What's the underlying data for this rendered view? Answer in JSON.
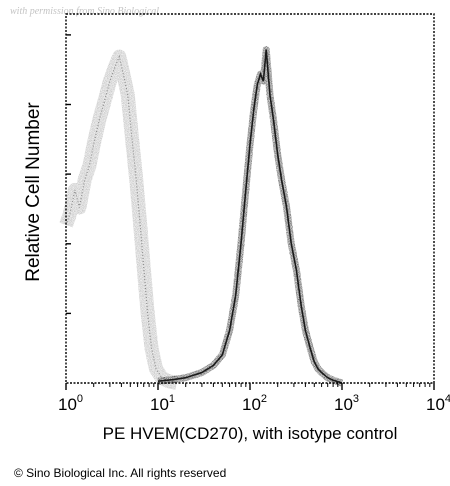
{
  "watermark": "with permission from Sino Biological",
  "copyright": "© Sino Biological Inc. All rights reserved",
  "chart_data": {
    "type": "area",
    "xlabel": "PE HVEM(CD270), with isotype control",
    "ylabel": "Relative Cell Number",
    "xscale": "log",
    "xlim": [
      1,
      10000
    ],
    "ylim": [
      0,
      1
    ],
    "x_ticks": [
      {
        "base": "10",
        "exp": "0"
      },
      {
        "base": "10",
        "exp": "1"
      },
      {
        "base": "10",
        "exp": "2"
      },
      {
        "base": "10",
        "exp": "3"
      },
      {
        "base": "10",
        "exp": "4"
      }
    ],
    "grid": false,
    "series": [
      {
        "role": "isotype-control",
        "style": "dotted",
        "color": "#8a8a8a",
        "x": [
          1,
          1.1,
          1.25,
          1.4,
          1.6,
          1.8,
          2.0,
          2.3,
          2.6,
          3.0,
          3.4,
          3.8,
          4.2,
          4.7,
          5.2,
          5.8,
          6.4,
          7.0,
          7.7,
          8.5,
          9.5,
          11,
          13,
          16
        ],
        "y": [
          0.45,
          0.48,
          0.55,
          0.5,
          0.58,
          0.62,
          0.68,
          0.75,
          0.8,
          0.86,
          0.9,
          0.93,
          0.88,
          0.82,
          0.7,
          0.58,
          0.45,
          0.33,
          0.2,
          0.1,
          0.04,
          0.015,
          0.005,
          0.0
        ]
      },
      {
        "role": "hvem-stained",
        "style": "solid",
        "color": "#1a1a1a",
        "x": [
          10,
          15,
          20,
          30,
          40,
          50,
          60,
          70,
          80,
          90,
          100,
          110,
          120,
          130,
          140,
          150,
          165,
          180,
          200,
          220,
          250,
          280,
          320,
          360,
          400,
          450,
          500,
          550,
          600,
          700,
          800,
          1000
        ],
        "y": [
          0.005,
          0.01,
          0.015,
          0.03,
          0.05,
          0.08,
          0.15,
          0.25,
          0.4,
          0.55,
          0.68,
          0.78,
          0.85,
          0.88,
          0.86,
          0.95,
          0.82,
          0.75,
          0.65,
          0.58,
          0.5,
          0.4,
          0.32,
          0.22,
          0.15,
          0.1,
          0.06,
          0.04,
          0.03,
          0.015,
          0.008,
          0.0
        ]
      }
    ]
  }
}
